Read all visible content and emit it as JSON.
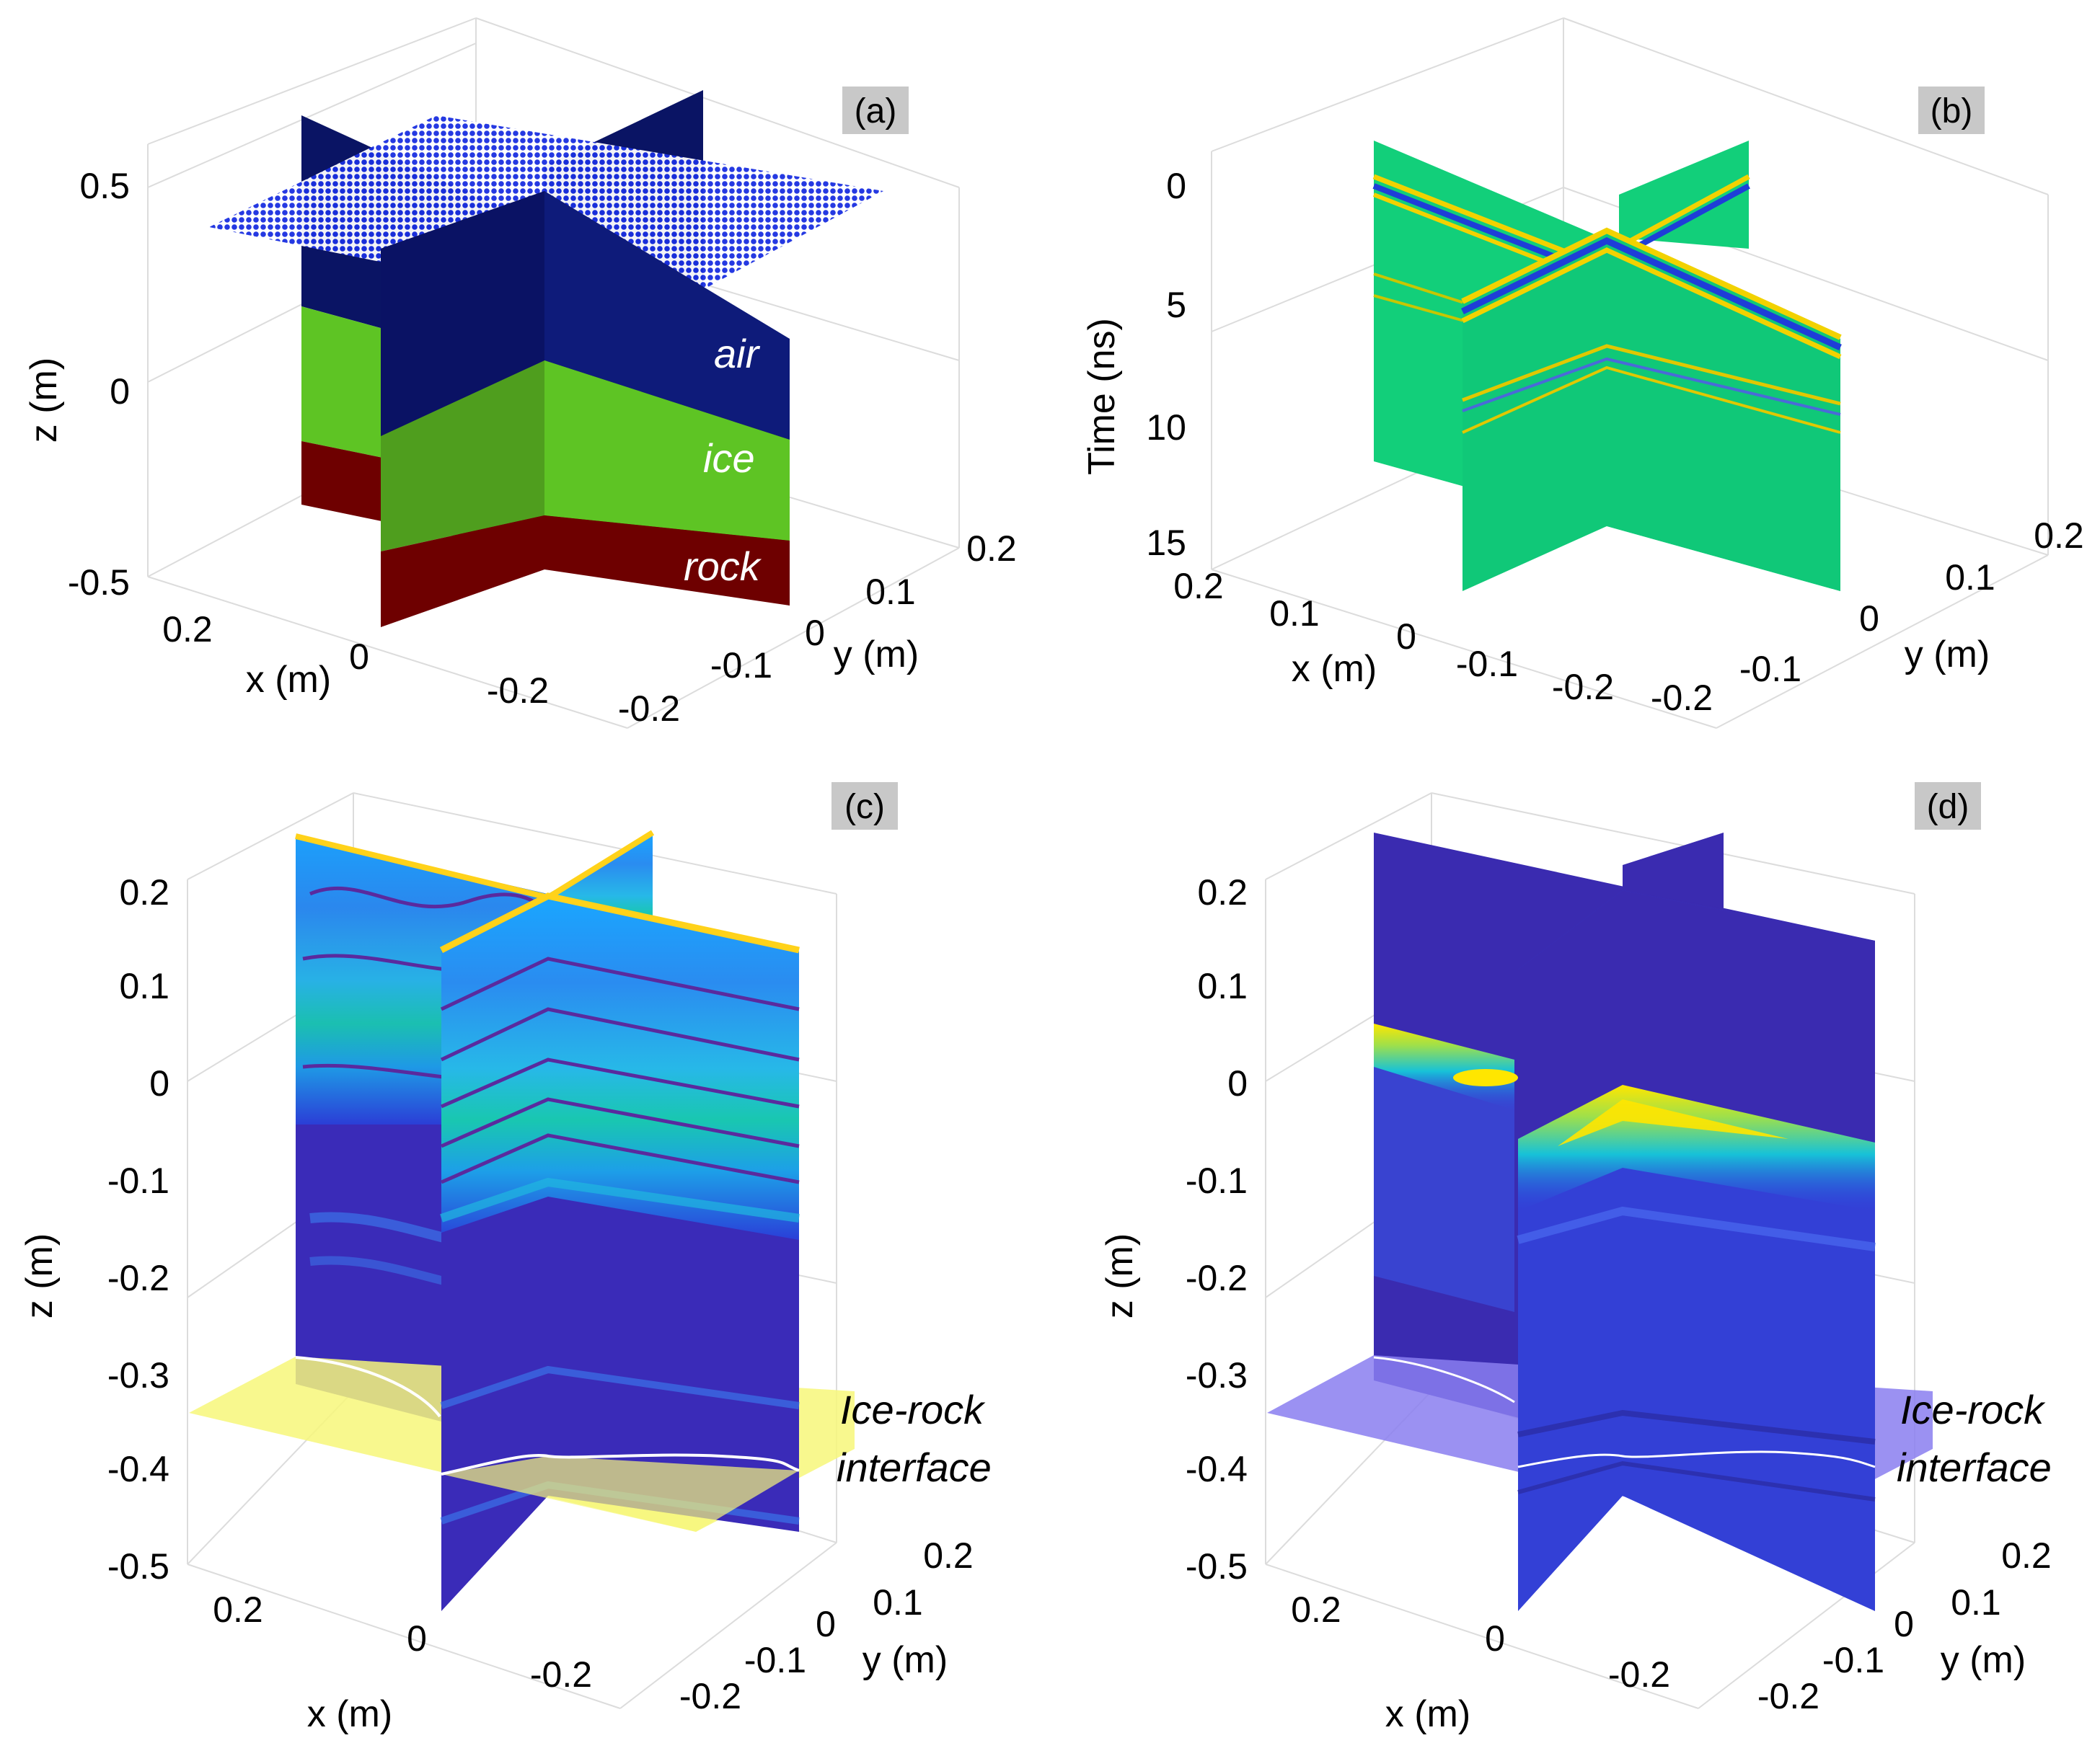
{
  "chart_data": [
    {
      "panel": "(a)",
      "type": "3d-model",
      "zlabel": "z (m)",
      "xlabel": "x (m)",
      "ylabel": "y (m)",
      "zticks": [
        "0.5",
        "0",
        "-0.5"
      ],
      "xticks": [
        "0.2",
        "0",
        "-0.2"
      ],
      "yticks": [
        "0.2",
        "0.1",
        "0",
        "-0.1",
        "-0.2"
      ],
      "layers": [
        {
          "name": "air",
          "color": "#0a1464"
        },
        {
          "name": "ice",
          "color": "#5ec424"
        },
        {
          "name": "rock",
          "color": "#6e0000"
        }
      ]
    },
    {
      "panel": "(b)",
      "type": "3d-radargram",
      "zlabel": "Time (ns)",
      "xlabel": "x (m)",
      "ylabel": "y (m)",
      "zticks": [
        "0",
        "5",
        "10",
        "15"
      ],
      "xticks": [
        "0.2",
        "0.1",
        "0",
        "-0.1",
        "-0.2"
      ],
      "yticks": [
        "0.2",
        "0.1",
        "0",
        "-0.1",
        "-0.2"
      ]
    },
    {
      "panel": "(c)",
      "type": "3d-migrated-image",
      "zlabel": "z (m)",
      "xlabel": "x (m)",
      "ylabel": "y (m)",
      "zticks": [
        "0.2",
        "0.1",
        "0",
        "-0.1",
        "-0.2",
        "-0.3",
        "-0.4",
        "-0.5"
      ],
      "xticks": [
        "0.2",
        "0",
        "-0.2"
      ],
      "yticks": [
        "0.2",
        "0.1",
        "0",
        "-0.1",
        "-0.2"
      ],
      "annotation": [
        "Ice-rock",
        "interface"
      ]
    },
    {
      "panel": "(d)",
      "type": "3d-migrated-image",
      "zlabel": "z (m)",
      "xlabel": "x (m)",
      "ylabel": "y (m)",
      "zticks": [
        "0.2",
        "0.1",
        "0",
        "-0.1",
        "-0.2",
        "-0.3",
        "-0.4",
        "-0.5"
      ],
      "xticks": [
        "0.2",
        "0",
        "-0.2"
      ],
      "yticks": [
        "0.2",
        "0.1",
        "0",
        "-0.1",
        "-0.2"
      ],
      "annotation": [
        "Ice-rock",
        "interface"
      ]
    }
  ]
}
